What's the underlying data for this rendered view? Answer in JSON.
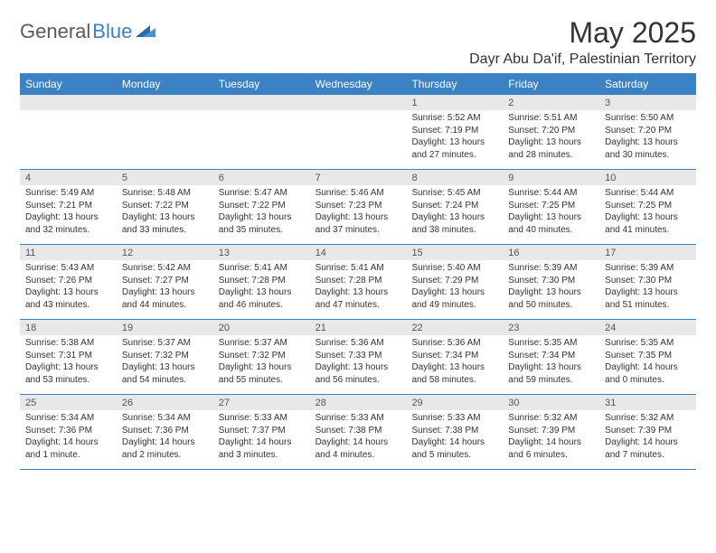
{
  "logo": {
    "word1": "General",
    "word2": "Blue"
  },
  "title": "May 2025",
  "location": "Dayr Abu Da'if, Palestinian Territory",
  "colors": {
    "header_bg": "#3b82c4",
    "header_text": "#ffffff",
    "date_strip_bg": "#e8e8e8",
    "body_text": "#333333",
    "rule": "#3b82c4"
  },
  "day_names": [
    "Sunday",
    "Monday",
    "Tuesday",
    "Wednesday",
    "Thursday",
    "Friday",
    "Saturday"
  ],
  "weeks": [
    [
      {
        "date": "",
        "lines": []
      },
      {
        "date": "",
        "lines": []
      },
      {
        "date": "",
        "lines": []
      },
      {
        "date": "",
        "lines": []
      },
      {
        "date": "1",
        "lines": [
          "Sunrise: 5:52 AM",
          "Sunset: 7:19 PM",
          "Daylight: 13 hours and 27 minutes."
        ]
      },
      {
        "date": "2",
        "lines": [
          "Sunrise: 5:51 AM",
          "Sunset: 7:20 PM",
          "Daylight: 13 hours and 28 minutes."
        ]
      },
      {
        "date": "3",
        "lines": [
          "Sunrise: 5:50 AM",
          "Sunset: 7:20 PM",
          "Daylight: 13 hours and 30 minutes."
        ]
      }
    ],
    [
      {
        "date": "4",
        "lines": [
          "Sunrise: 5:49 AM",
          "Sunset: 7:21 PM",
          "Daylight: 13 hours and 32 minutes."
        ]
      },
      {
        "date": "5",
        "lines": [
          "Sunrise: 5:48 AM",
          "Sunset: 7:22 PM",
          "Daylight: 13 hours and 33 minutes."
        ]
      },
      {
        "date": "6",
        "lines": [
          "Sunrise: 5:47 AM",
          "Sunset: 7:22 PM",
          "Daylight: 13 hours and 35 minutes."
        ]
      },
      {
        "date": "7",
        "lines": [
          "Sunrise: 5:46 AM",
          "Sunset: 7:23 PM",
          "Daylight: 13 hours and 37 minutes."
        ]
      },
      {
        "date": "8",
        "lines": [
          "Sunrise: 5:45 AM",
          "Sunset: 7:24 PM",
          "Daylight: 13 hours and 38 minutes."
        ]
      },
      {
        "date": "9",
        "lines": [
          "Sunrise: 5:44 AM",
          "Sunset: 7:25 PM",
          "Daylight: 13 hours and 40 minutes."
        ]
      },
      {
        "date": "10",
        "lines": [
          "Sunrise: 5:44 AM",
          "Sunset: 7:25 PM",
          "Daylight: 13 hours and 41 minutes."
        ]
      }
    ],
    [
      {
        "date": "11",
        "lines": [
          "Sunrise: 5:43 AM",
          "Sunset: 7:26 PM",
          "Daylight: 13 hours and 43 minutes."
        ]
      },
      {
        "date": "12",
        "lines": [
          "Sunrise: 5:42 AM",
          "Sunset: 7:27 PM",
          "Daylight: 13 hours and 44 minutes."
        ]
      },
      {
        "date": "13",
        "lines": [
          "Sunrise: 5:41 AM",
          "Sunset: 7:28 PM",
          "Daylight: 13 hours and 46 minutes."
        ]
      },
      {
        "date": "14",
        "lines": [
          "Sunrise: 5:41 AM",
          "Sunset: 7:28 PM",
          "Daylight: 13 hours and 47 minutes."
        ]
      },
      {
        "date": "15",
        "lines": [
          "Sunrise: 5:40 AM",
          "Sunset: 7:29 PM",
          "Daylight: 13 hours and 49 minutes."
        ]
      },
      {
        "date": "16",
        "lines": [
          "Sunrise: 5:39 AM",
          "Sunset: 7:30 PM",
          "Daylight: 13 hours and 50 minutes."
        ]
      },
      {
        "date": "17",
        "lines": [
          "Sunrise: 5:39 AM",
          "Sunset: 7:30 PM",
          "Daylight: 13 hours and 51 minutes."
        ]
      }
    ],
    [
      {
        "date": "18",
        "lines": [
          "Sunrise: 5:38 AM",
          "Sunset: 7:31 PM",
          "Daylight: 13 hours and 53 minutes."
        ]
      },
      {
        "date": "19",
        "lines": [
          "Sunrise: 5:37 AM",
          "Sunset: 7:32 PM",
          "Daylight: 13 hours and 54 minutes."
        ]
      },
      {
        "date": "20",
        "lines": [
          "Sunrise: 5:37 AM",
          "Sunset: 7:32 PM",
          "Daylight: 13 hours and 55 minutes."
        ]
      },
      {
        "date": "21",
        "lines": [
          "Sunrise: 5:36 AM",
          "Sunset: 7:33 PM",
          "Daylight: 13 hours and 56 minutes."
        ]
      },
      {
        "date": "22",
        "lines": [
          "Sunrise: 5:36 AM",
          "Sunset: 7:34 PM",
          "Daylight: 13 hours and 58 minutes."
        ]
      },
      {
        "date": "23",
        "lines": [
          "Sunrise: 5:35 AM",
          "Sunset: 7:34 PM",
          "Daylight: 13 hours and 59 minutes."
        ]
      },
      {
        "date": "24",
        "lines": [
          "Sunrise: 5:35 AM",
          "Sunset: 7:35 PM",
          "Daylight: 14 hours and 0 minutes."
        ]
      }
    ],
    [
      {
        "date": "25",
        "lines": [
          "Sunrise: 5:34 AM",
          "Sunset: 7:36 PM",
          "Daylight: 14 hours and 1 minute."
        ]
      },
      {
        "date": "26",
        "lines": [
          "Sunrise: 5:34 AM",
          "Sunset: 7:36 PM",
          "Daylight: 14 hours and 2 minutes."
        ]
      },
      {
        "date": "27",
        "lines": [
          "Sunrise: 5:33 AM",
          "Sunset: 7:37 PM",
          "Daylight: 14 hours and 3 minutes."
        ]
      },
      {
        "date": "28",
        "lines": [
          "Sunrise: 5:33 AM",
          "Sunset: 7:38 PM",
          "Daylight: 14 hours and 4 minutes."
        ]
      },
      {
        "date": "29",
        "lines": [
          "Sunrise: 5:33 AM",
          "Sunset: 7:38 PM",
          "Daylight: 14 hours and 5 minutes."
        ]
      },
      {
        "date": "30",
        "lines": [
          "Sunrise: 5:32 AM",
          "Sunset: 7:39 PM",
          "Daylight: 14 hours and 6 minutes."
        ]
      },
      {
        "date": "31",
        "lines": [
          "Sunrise: 5:32 AM",
          "Sunset: 7:39 PM",
          "Daylight: 14 hours and 7 minutes."
        ]
      }
    ]
  ]
}
